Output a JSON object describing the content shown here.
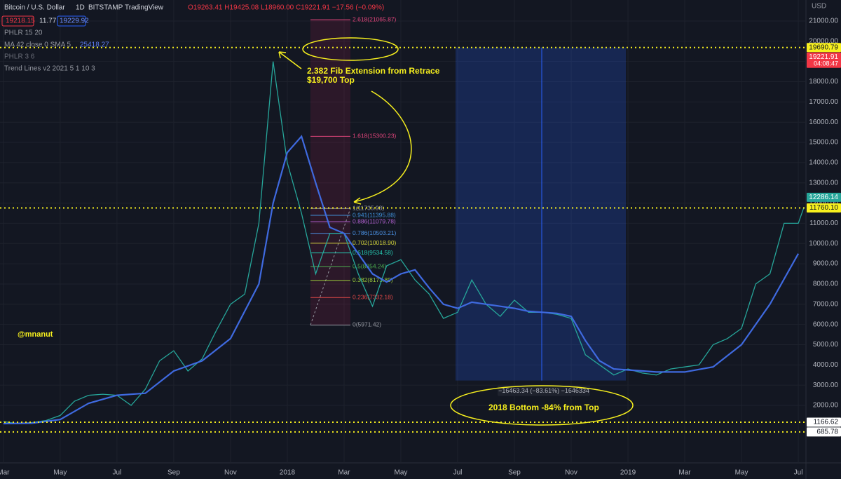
{
  "header": {
    "symbol": "Bitcoin / U.S. Dollar",
    "interval": "1D",
    "exchange": "BITSTAMP",
    "brand": "TradingView",
    "ohlc": "O19263.41 H19425.08 L18960.00 C19221.91 −17.56 (−0.09%)",
    "bid": "19218.15",
    "spread": "11.77",
    "ask": "19229.92",
    "indicators": [
      "PHLR 15 20",
      "MA 42 close 0 SMA 5",
      "PHLR 3 6",
      "Trend Lines v2 2021 5 1 10 3"
    ],
    "ma_value": "25418.27"
  },
  "chart_data": {
    "type": "line",
    "currency": "USD",
    "xlim": [
      -0.12,
      28.27
    ],
    "ylim": [
      -843,
      22040
    ],
    "xticks": [
      {
        "value": 0,
        "label": "Mar"
      },
      {
        "value": 2,
        "label": "May"
      },
      {
        "value": 4,
        "label": "Jul"
      },
      {
        "value": 6,
        "label": "Sep"
      },
      {
        "value": 8,
        "label": "Nov"
      },
      {
        "value": 10,
        "label": "2018"
      },
      {
        "value": 12,
        "label": "Mar"
      },
      {
        "value": 14,
        "label": "May"
      },
      {
        "value": 16,
        "label": "Jul"
      },
      {
        "value": 18,
        "label": "Sep"
      },
      {
        "value": 20,
        "label": "Nov"
      },
      {
        "value": 22,
        "label": "2019"
      },
      {
        "value": 24,
        "label": "Mar"
      },
      {
        "value": 26,
        "label": "May"
      },
      {
        "value": 28,
        "label": "Jul"
      }
    ],
    "yticks": [
      {
        "value": 2000,
        "label": "2000.00"
      },
      {
        "value": 3000,
        "label": "3000.00"
      },
      {
        "value": 4000,
        "label": "4000.00"
      },
      {
        "value": 5000,
        "label": "5000.00"
      },
      {
        "value": 6000,
        "label": "6000.00"
      },
      {
        "value": 7000,
        "label": "7000.00"
      },
      {
        "value": 8000,
        "label": "8000.00"
      },
      {
        "value": 9000,
        "label": "9000.00"
      },
      {
        "value": 10000,
        "label": "10000.00"
      },
      {
        "value": 11000,
        "label": "11000.00"
      },
      {
        "value": 12000,
        "label": "12000.00"
      },
      {
        "value": 13000,
        "label": "13000.00"
      },
      {
        "value": 14000,
        "label": "14000.00"
      },
      {
        "value": 15000,
        "label": "15000.00"
      },
      {
        "value": 16000,
        "label": "16000.00"
      },
      {
        "value": 17000,
        "label": "17000.00"
      },
      {
        "value": 18000,
        "label": "18000.00"
      },
      {
        "value": 19000,
        "label": "19000.00"
      },
      {
        "value": 20000,
        "label": "20000.00"
      },
      {
        "value": 21000,
        "label": "21000.00"
      }
    ],
    "grid": true,
    "series": [
      {
        "color": "#26a69a",
        "x": [
          0,
          0.5,
          1,
          1.5,
          2,
          2.5,
          3,
          3.5,
          4,
          4.5,
          5,
          5.5,
          6,
          6.5,
          7,
          7.5,
          8,
          8.5,
          9,
          9.5,
          10,
          10.5,
          11,
          11.5,
          12,
          12.5,
          13,
          13.5,
          14,
          14.5,
          15,
          15.5,
          16,
          16.5,
          17,
          17.5,
          18,
          18.5,
          19,
          19.5,
          20,
          20.5,
          21,
          21.5,
          22,
          22.5,
          23,
          23.5,
          24,
          24.5,
          25,
          25.5,
          26,
          26.5,
          27,
          27.5,
          28,
          28.2
        ],
        "values": [
          1200,
          1100,
          1150,
          1250,
          1500,
          2200,
          2500,
          2550,
          2500,
          2000,
          2800,
          4200,
          4700,
          3700,
          4300,
          5700,
          7000,
          7500,
          11000,
          19000,
          14000,
          11500,
          8500,
          10500,
          10500,
          8500,
          6900,
          8900,
          9200,
          8200,
          7500,
          6300,
          6600,
          8200,
          7000,
          6400,
          7200,
          6600,
          6600,
          6500,
          6300,
          4500,
          4000,
          3500,
          3800,
          3600,
          3500,
          3800,
          3900,
          4000,
          5000,
          5300,
          5800,
          8000,
          8500,
          11000,
          11000,
          11800
        ]
      },
      {
        "color": "#3f6ae0",
        "x": [
          0,
          1,
          2,
          3,
          4,
          5,
          6,
          7,
          8,
          9,
          9.5,
          10,
          10.5,
          11,
          11.5,
          12,
          12.5,
          13,
          13.5,
          14,
          14.5,
          15,
          15.5,
          16,
          16.5,
          17,
          17.5,
          18,
          18.5,
          19,
          19.5,
          20,
          20.5,
          21,
          21.5,
          22,
          23,
          24,
          25,
          26,
          27,
          28
        ],
        "values": [
          1100,
          1120,
          1300,
          2100,
          2500,
          2600,
          3700,
          4200,
          5300,
          8000,
          12000,
          14500,
          15300,
          13000,
          10800,
          10500,
          9500,
          8500,
          8100,
          8500,
          8700,
          7800,
          7000,
          6800,
          7100,
          7000,
          6900,
          6800,
          6650,
          6600,
          6550,
          6400,
          5200,
          4200,
          3800,
          3750,
          3650,
          3650,
          3900,
          5000,
          7000,
          9500
        ]
      }
    ],
    "fib_levels": [
      {
        "value": 21065.87,
        "label": "2.618(21065.87)",
        "color": "#e0457b"
      },
      {
        "value": 15300.23,
        "label": "1.618(15300.23)",
        "color": "#e0457b"
      },
      {
        "value": 11735.98,
        "label": "1(11735.98)",
        "color": "#9598a1"
      },
      {
        "value": 11395.88,
        "label": "0.941(11395.88)",
        "color": "#3f8fd6"
      },
      {
        "value": 11079.78,
        "label": "0.886(11079.78)",
        "color": "#b160d0"
      },
      {
        "value": 10503.21,
        "label": "0.786(10503.21)",
        "color": "#4a90e2"
      },
      {
        "value": 10018.9,
        "label": "0.702(10018.90)",
        "color": "#d4d43a"
      },
      {
        "value": 9534.58,
        "label": "0.618(9534.58)",
        "color": "#26c6b0"
      },
      {
        "value": 8854.24,
        "label": "0.5(8854.24)",
        "color": "#4caf50"
      },
      {
        "value": 8173.89,
        "label": "0.382(8173.89)",
        "color": "#9ccc3c"
      },
      {
        "value": 7332.18,
        "label": "0.236(7332.18)",
        "color": "#e04848"
      },
      {
        "value": 5971.42,
        "label": "0(5971.42)",
        "color": "#9598a1"
      }
    ],
    "measure": {
      "start": 19690.79,
      "end": 3227.45,
      "label": "−16463.34 (−83.61%) −1646334"
    },
    "price_tags": [
      {
        "value": 19690.79,
        "label": "19690.79",
        "color": "#f7f01e",
        "dotted": true
      },
      {
        "value": 19221.91,
        "label": "19221.91",
        "color": "#f23645",
        "timer": "04:08:47"
      },
      {
        "value": 12286.14,
        "label": "12286.14",
        "color": "#26a69a"
      },
      {
        "value": 11760.1,
        "label": "11760.10",
        "color": "#f7f01e",
        "dotted": true
      },
      {
        "value": 1166.62,
        "label": "1166.62",
        "color": "#ffffff",
        "dotted": true
      },
      {
        "value": 685.78,
        "label": "685.78",
        "color": "#ffffff",
        "dotted": true
      }
    ],
    "annotations": {
      "fib_note": "2.382 Fib Extension from Retrace",
      "top_note": "$19,700 Top",
      "author": "@mnanut",
      "bottom_note": "2018 Bottom -84% from Top"
    }
  }
}
